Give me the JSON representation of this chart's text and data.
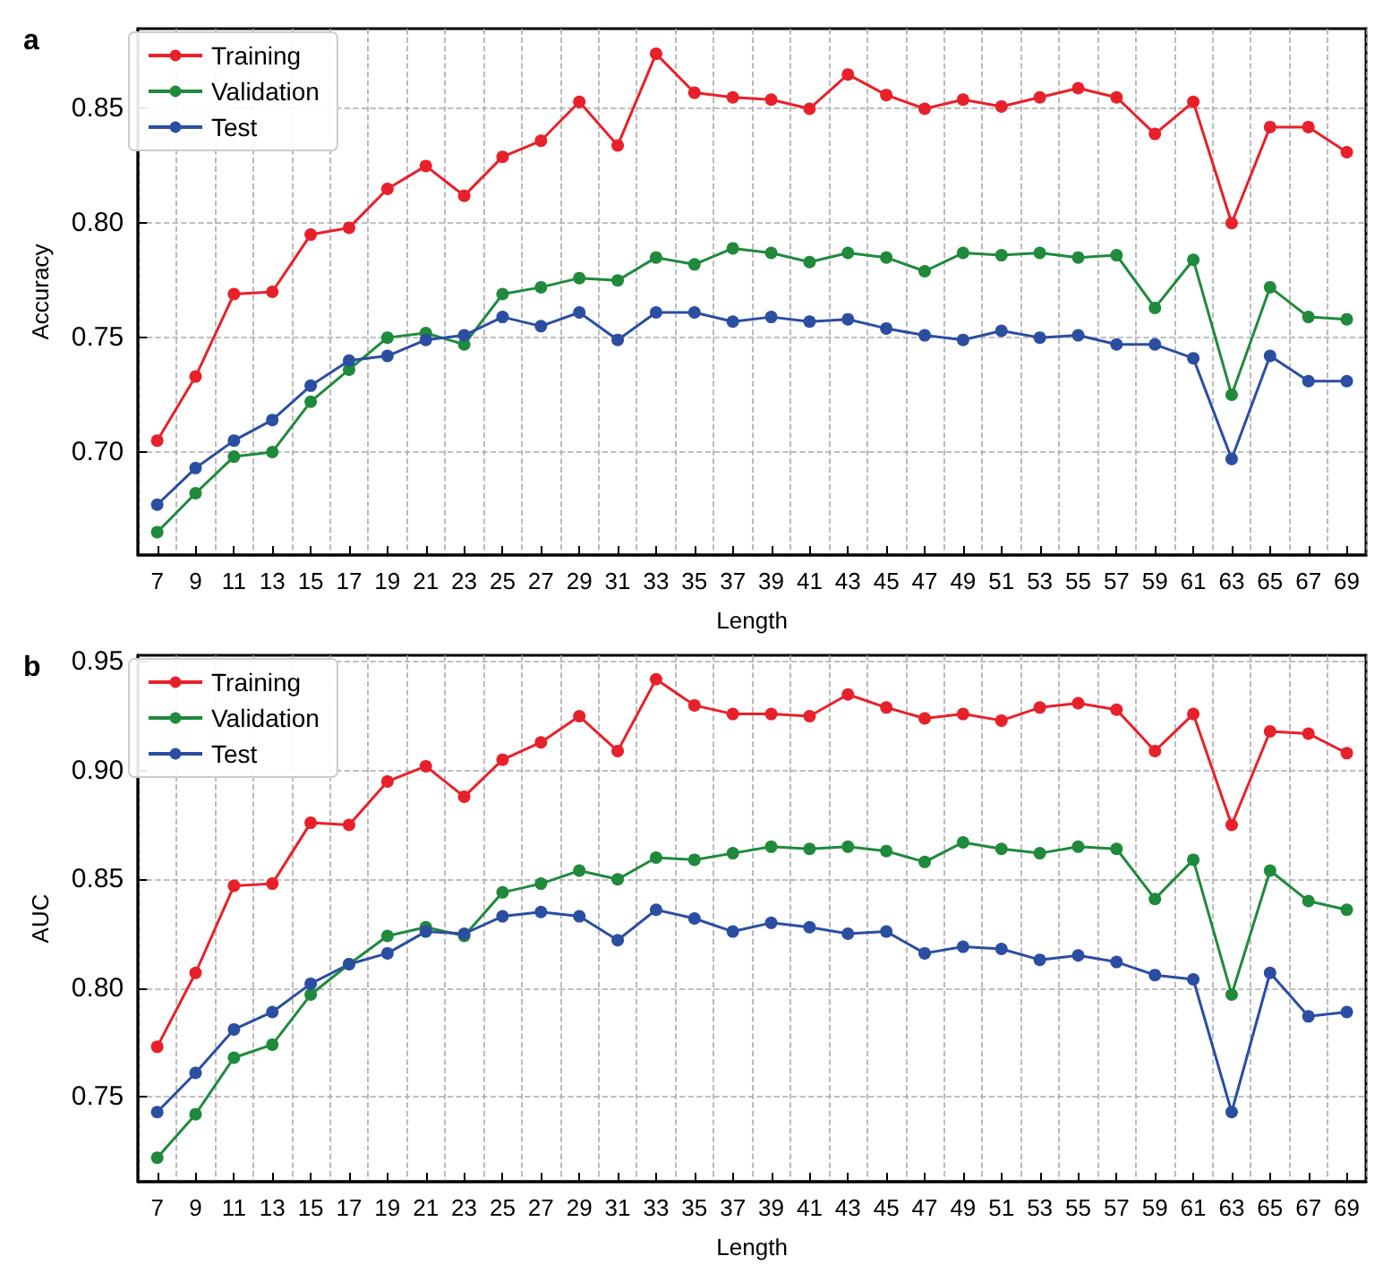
{
  "chart_data": [
    {
      "type": "line",
      "title": "a",
      "xlabel": "Length",
      "ylabel": "Accuracy",
      "categories": [
        "7",
        "9",
        "11",
        "13",
        "15",
        "17",
        "19",
        "21",
        "23",
        "25",
        "27",
        "29",
        "31",
        "33",
        "35",
        "37",
        "39",
        "41",
        "43",
        "45",
        "47",
        "49",
        "51",
        "53",
        "55",
        "57",
        "59",
        "61",
        "63",
        "65",
        "67",
        "69"
      ],
      "series": [
        {
          "name": "Training",
          "color": "#e8202a",
          "values": [
            0.705,
            0.733,
            0.769,
            0.77,
            0.795,
            0.798,
            0.815,
            0.825,
            0.812,
            0.829,
            0.836,
            0.853,
            0.834,
            0.874,
            0.857,
            0.855,
            0.854,
            0.85,
            0.865,
            0.856,
            0.85,
            0.854,
            0.851,
            0.855,
            0.859,
            0.855,
            0.839,
            0.853,
            0.8,
            0.842,
            0.842,
            0.831
          ]
        },
        {
          "name": "Validation",
          "color": "#1f8a3c",
          "values": [
            0.665,
            0.682,
            0.698,
            0.7,
            0.722,
            0.736,
            0.75,
            0.752,
            0.747,
            0.769,
            0.772,
            0.776,
            0.775,
            0.785,
            0.782,
            0.789,
            0.787,
            0.783,
            0.787,
            0.785,
            0.779,
            0.787,
            0.786,
            0.787,
            0.785,
            0.786,
            0.763,
            0.784,
            0.725,
            0.772,
            0.759,
            0.758
          ]
        },
        {
          "name": "Test",
          "color": "#2b4ea2",
          "values": [
            0.677,
            0.693,
            0.705,
            0.714,
            0.729,
            0.74,
            0.742,
            0.749,
            0.751,
            0.759,
            0.755,
            0.761,
            0.749,
            0.761,
            0.761,
            0.757,
            0.759,
            0.757,
            0.758,
            0.754,
            0.751,
            0.749,
            0.753,
            0.75,
            0.751,
            0.747,
            0.747,
            0.741,
            0.697,
            0.742,
            0.731,
            0.731
          ]
        }
      ],
      "ylim": [
        0.655,
        0.885
      ],
      "yticks": [
        {
          "value": 0.7,
          "label": "0.70"
        },
        {
          "value": 0.75,
          "label": "0.75"
        },
        {
          "value": 0.8,
          "label": "0.80"
        },
        {
          "value": 0.85,
          "label": "0.85"
        }
      ],
      "grid": true,
      "legend": "top left",
      "marker": "circle",
      "line_style": "solid"
    },
    {
      "type": "line",
      "title": "b",
      "xlabel": "Length",
      "ylabel": "AUC",
      "categories": [
        "7",
        "9",
        "11",
        "13",
        "15",
        "17",
        "19",
        "21",
        "23",
        "25",
        "27",
        "29",
        "31",
        "33",
        "35",
        "37",
        "39",
        "41",
        "43",
        "45",
        "47",
        "49",
        "51",
        "53",
        "55",
        "57",
        "59",
        "61",
        "63",
        "65",
        "67",
        "69"
      ],
      "series": [
        {
          "name": "Training",
          "color": "#e8202a",
          "values": [
            0.773,
            0.807,
            0.847,
            0.848,
            0.876,
            0.875,
            0.895,
            0.902,
            0.888,
            0.905,
            0.913,
            0.925,
            0.909,
            0.942,
            0.93,
            0.926,
            0.926,
            0.925,
            0.935,
            0.929,
            0.924,
            0.926,
            0.923,
            0.929,
            0.931,
            0.928,
            0.909,
            0.926,
            0.875,
            0.918,
            0.917,
            0.908
          ]
        },
        {
          "name": "Validation",
          "color": "#1f8a3c",
          "values": [
            0.722,
            0.742,
            0.768,
            0.774,
            0.797,
            0.811,
            0.824,
            0.828,
            0.824,
            0.844,
            0.848,
            0.854,
            0.85,
            0.86,
            0.859,
            0.862,
            0.865,
            0.864,
            0.865,
            0.863,
            0.858,
            0.867,
            0.864,
            0.862,
            0.865,
            0.864,
            0.841,
            0.859,
            0.797,
            0.854,
            0.84,
            0.836
          ]
        },
        {
          "name": "Test",
          "color": "#2b4ea2",
          "values": [
            0.743,
            0.761,
            0.781,
            0.789,
            0.802,
            0.811,
            0.816,
            0.826,
            0.825,
            0.833,
            0.835,
            0.833,
            0.822,
            0.836,
            0.832,
            0.826,
            0.83,
            0.828,
            0.825,
            0.826,
            0.816,
            0.819,
            0.818,
            0.813,
            0.815,
            0.812,
            0.806,
            0.804,
            0.743,
            0.807,
            0.787,
            0.789
          ]
        }
      ],
      "ylim": [
        0.711,
        0.953
      ],
      "yticks": [
        {
          "value": 0.75,
          "label": "0.75"
        },
        {
          "value": 0.8,
          "label": "0.80"
        },
        {
          "value": 0.85,
          "label": "0.85"
        },
        {
          "value": 0.9,
          "label": "0.90"
        },
        {
          "value": 0.95,
          "label": "0.95"
        }
      ],
      "grid": true,
      "legend": "top left",
      "marker": "circle",
      "line_style": "solid"
    }
  ]
}
